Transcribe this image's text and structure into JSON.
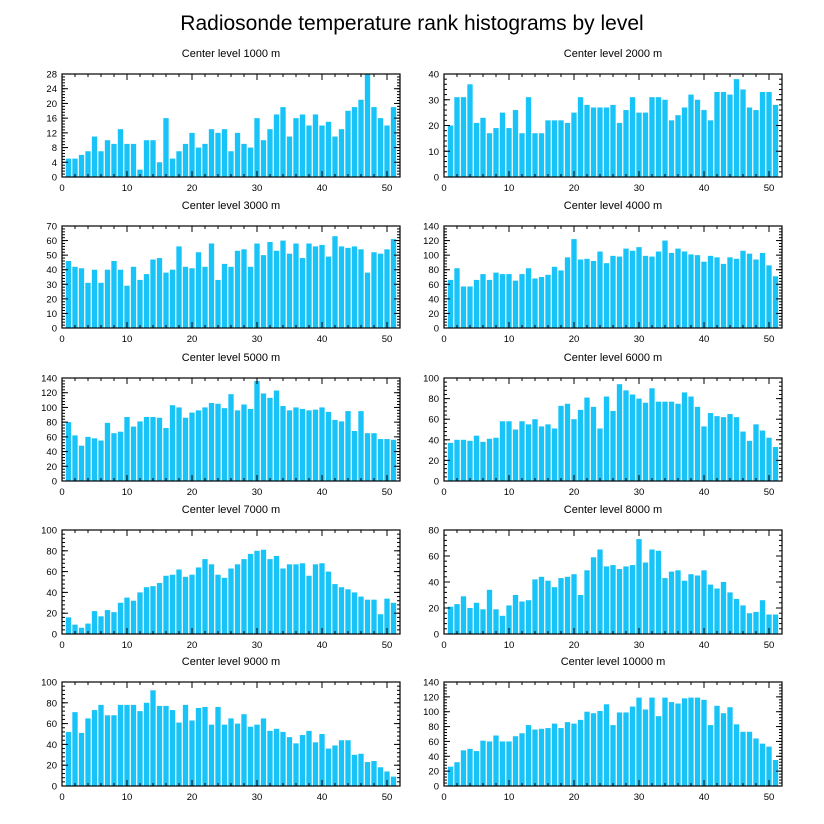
{
  "chart_data": {
    "type": "bar",
    "title": "Radiosonde temperature rank histograms by level",
    "bar_color": "#18c3f8",
    "panels": [
      {
        "title": "Center level 1000 m",
        "xlim": [
          0,
          52
        ],
        "ylim": [
          0,
          28
        ],
        "xticks": [
          0,
          10,
          20,
          30,
          40,
          50
        ],
        "yticks": [
          0,
          4,
          8,
          12,
          16,
          20,
          24,
          28
        ],
        "x": [
          1,
          2,
          3,
          4,
          5,
          6,
          7,
          8,
          9,
          10,
          11,
          12,
          13,
          14,
          15,
          16,
          17,
          18,
          19,
          20,
          21,
          22,
          23,
          24,
          25,
          26,
          27,
          28,
          29,
          30,
          31,
          32,
          33,
          34,
          35,
          36,
          37,
          38,
          39,
          40,
          41,
          42,
          43,
          44,
          45,
          46,
          47,
          48,
          49,
          50,
          51
        ],
        "values": [
          5,
          5,
          6,
          7,
          11,
          7,
          10,
          9,
          13,
          9,
          9,
          2,
          10,
          10,
          4,
          16,
          5,
          7,
          9,
          12,
          8,
          9,
          13,
          12,
          13,
          7,
          12,
          9,
          8,
          16,
          10,
          13,
          17,
          19,
          11,
          16,
          17,
          14,
          17,
          14,
          15,
          11,
          13,
          18,
          19,
          21,
          28,
          19,
          16,
          14,
          19
        ]
      },
      {
        "title": "Center level 2000 m",
        "xlim": [
          0,
          52
        ],
        "ylim": [
          0,
          40
        ],
        "xticks": [
          0,
          10,
          20,
          30,
          40,
          50
        ],
        "yticks": [
          0,
          10,
          20,
          30,
          40
        ],
        "x": [
          1,
          2,
          3,
          4,
          5,
          6,
          7,
          8,
          9,
          10,
          11,
          12,
          13,
          14,
          15,
          16,
          17,
          18,
          19,
          20,
          21,
          22,
          23,
          24,
          25,
          26,
          27,
          28,
          29,
          30,
          31,
          32,
          33,
          34,
          35,
          36,
          37,
          38,
          39,
          40,
          41,
          42,
          43,
          44,
          45,
          46,
          47,
          48,
          49,
          50,
          51
        ],
        "values": [
          20,
          31,
          31,
          36,
          21,
          23,
          17,
          19,
          25,
          19,
          26,
          17,
          31,
          17,
          17,
          22,
          22,
          22,
          21,
          25,
          31,
          28,
          27,
          27,
          27,
          28,
          21,
          26,
          31,
          25,
          25,
          31,
          31,
          30,
          22,
          24,
          27,
          32,
          30,
          26,
          22,
          33,
          33,
          32,
          38,
          34,
          27,
          26,
          33,
          33,
          28
        ]
      },
      {
        "title": "Center level 3000 m",
        "xlim": [
          0,
          52
        ],
        "ylim": [
          0,
          70
        ],
        "xticks": [
          0,
          10,
          20,
          30,
          40,
          50
        ],
        "yticks": [
          0,
          10,
          20,
          30,
          40,
          50,
          60,
          70
        ],
        "x": [
          1,
          2,
          3,
          4,
          5,
          6,
          7,
          8,
          9,
          10,
          11,
          12,
          13,
          14,
          15,
          16,
          17,
          18,
          19,
          20,
          21,
          22,
          23,
          24,
          25,
          26,
          27,
          28,
          29,
          30,
          31,
          32,
          33,
          34,
          35,
          36,
          37,
          38,
          39,
          40,
          41,
          42,
          43,
          44,
          45,
          46,
          47,
          48,
          49,
          50,
          51
        ],
        "values": [
          46,
          42,
          41,
          31,
          40,
          31,
          40,
          46,
          40,
          29,
          42,
          33,
          37,
          47,
          48,
          38,
          40,
          56,
          42,
          41,
          52,
          42,
          58,
          33,
          44,
          42,
          53,
          54,
          42,
          58,
          50,
          59,
          53,
          60,
          51,
          58,
          48,
          58,
          56,
          57,
          49,
          63,
          56,
          55,
          56,
          54,
          38,
          52,
          51,
          54,
          61
        ]
      },
      {
        "title": "Center level 4000 m",
        "xlim": [
          0,
          52
        ],
        "ylim": [
          0,
          140
        ],
        "xticks": [
          0,
          10,
          20,
          30,
          40,
          50
        ],
        "yticks": [
          0,
          20,
          40,
          60,
          80,
          100,
          120,
          140
        ],
        "x": [
          1,
          2,
          3,
          4,
          5,
          6,
          7,
          8,
          9,
          10,
          11,
          12,
          13,
          14,
          15,
          16,
          17,
          18,
          19,
          20,
          21,
          22,
          23,
          24,
          25,
          26,
          27,
          28,
          29,
          30,
          31,
          32,
          33,
          34,
          35,
          36,
          37,
          38,
          39,
          40,
          41,
          42,
          43,
          44,
          45,
          46,
          47,
          48,
          49,
          50,
          51
        ],
        "values": [
          66,
          82,
          57,
          57,
          66,
          74,
          66,
          76,
          74,
          74,
          65,
          74,
          82,
          68,
          70,
          73,
          84,
          79,
          97,
          122,
          94,
          95,
          92,
          105,
          89,
          99,
          98,
          109,
          106,
          111,
          99,
          98,
          105,
          120,
          103,
          109,
          105,
          101,
          100,
          91,
          99,
          97,
          88,
          97,
          95,
          106,
          102,
          94,
          103,
          86,
          71
        ]
      },
      {
        "title": "Center level 5000 m",
        "xlim": [
          0,
          52
        ],
        "ylim": [
          0,
          140
        ],
        "xticks": [
          0,
          10,
          20,
          30,
          40,
          50
        ],
        "yticks": [
          0,
          20,
          40,
          60,
          80,
          100,
          120,
          140
        ],
        "x": [
          1,
          2,
          3,
          4,
          5,
          6,
          7,
          8,
          9,
          10,
          11,
          12,
          13,
          14,
          15,
          16,
          17,
          18,
          19,
          20,
          21,
          22,
          23,
          24,
          25,
          26,
          27,
          28,
          29,
          30,
          31,
          32,
          33,
          34,
          35,
          36,
          37,
          38,
          39,
          40,
          41,
          42,
          43,
          44,
          45,
          46,
          47,
          48,
          49,
          50,
          51
        ],
        "values": [
          80,
          62,
          48,
          60,
          58,
          55,
          79,
          65,
          67,
          87,
          74,
          81,
          87,
          87,
          86,
          72,
          103,
          100,
          86,
          93,
          96,
          100,
          106,
          105,
          99,
          118,
          96,
          104,
          98,
          136,
          119,
          113,
          123,
          102,
          96,
          100,
          98,
          96,
          97,
          100,
          94,
          83,
          81,
          95,
          68,
          95,
          65,
          65,
          57,
          57,
          56
        ]
      },
      {
        "title": "Center level 6000 m",
        "xlim": [
          0,
          52
        ],
        "ylim": [
          0,
          100
        ],
        "xticks": [
          0,
          10,
          20,
          30,
          40,
          50
        ],
        "yticks": [
          0,
          20,
          40,
          60,
          80,
          100
        ],
        "x": [
          1,
          2,
          3,
          4,
          5,
          6,
          7,
          8,
          9,
          10,
          11,
          12,
          13,
          14,
          15,
          16,
          17,
          18,
          19,
          20,
          21,
          22,
          23,
          24,
          25,
          26,
          27,
          28,
          29,
          30,
          31,
          32,
          33,
          34,
          35,
          36,
          37,
          38,
          39,
          40,
          41,
          42,
          43,
          44,
          45,
          46,
          47,
          48,
          49,
          50,
          51
        ],
        "values": [
          37,
          40,
          40,
          39,
          44,
          38,
          41,
          42,
          58,
          58,
          50,
          58,
          55,
          60,
          53,
          55,
          51,
          73,
          75,
          60,
          69,
          81,
          72,
          51,
          82,
          68,
          94,
          88,
          84,
          80,
          76,
          90,
          77,
          77,
          77,
          75,
          86,
          82,
          72,
          53,
          66,
          63,
          62,
          65,
          62,
          48,
          39,
          55,
          49,
          42,
          33
        ]
      },
      {
        "title": "Center level 7000 m",
        "xlim": [
          0,
          52
        ],
        "ylim": [
          0,
          100
        ],
        "xticks": [
          0,
          10,
          20,
          30,
          40,
          50
        ],
        "yticks": [
          0,
          20,
          40,
          60,
          80,
          100
        ],
        "x": [
          1,
          2,
          3,
          4,
          5,
          6,
          7,
          8,
          9,
          10,
          11,
          12,
          13,
          14,
          15,
          16,
          17,
          18,
          19,
          20,
          21,
          22,
          23,
          24,
          25,
          26,
          27,
          28,
          29,
          30,
          31,
          32,
          33,
          34,
          35,
          36,
          37,
          38,
          39,
          40,
          41,
          42,
          43,
          44,
          45,
          46,
          47,
          48,
          49,
          50,
          51
        ],
        "values": [
          16,
          9,
          6,
          10,
          22,
          17,
          23,
          21,
          30,
          35,
          32,
          40,
          45,
          46,
          49,
          56,
          57,
          62,
          55,
          57,
          64,
          72,
          67,
          57,
          54,
          63,
          67,
          72,
          77,
          80,
          81,
          72,
          75,
          63,
          67,
          67,
          68,
          56,
          67,
          68,
          60,
          48,
          45,
          43,
          40,
          36,
          33,
          33,
          19,
          34,
          30
        ]
      },
      {
        "title": "Center level 8000 m",
        "xlim": [
          0,
          52
        ],
        "ylim": [
          0,
          80
        ],
        "xticks": [
          0,
          10,
          20,
          30,
          40,
          50
        ],
        "yticks": [
          0,
          20,
          40,
          60,
          80
        ],
        "x": [
          1,
          2,
          3,
          4,
          5,
          6,
          7,
          8,
          9,
          10,
          11,
          12,
          13,
          14,
          15,
          16,
          17,
          18,
          19,
          20,
          21,
          22,
          23,
          24,
          25,
          26,
          27,
          28,
          29,
          30,
          31,
          32,
          33,
          34,
          35,
          36,
          37,
          38,
          39,
          40,
          41,
          42,
          43,
          44,
          45,
          46,
          47,
          48,
          49,
          50,
          51
        ],
        "values": [
          21,
          23,
          29,
          20,
          24,
          19,
          34,
          19,
          14,
          22,
          30,
          25,
          26,
          42,
          44,
          41,
          36,
          43,
          44,
          46,
          30,
          49,
          59,
          65,
          52,
          53,
          50,
          52,
          53,
          73,
          55,
          65,
          64,
          43,
          48,
          49,
          41,
          46,
          45,
          49,
          38,
          35,
          40,
          32,
          27,
          22,
          16,
          17,
          26,
          15,
          15
        ]
      },
      {
        "title": "Center level 9000 m",
        "xlim": [
          0,
          52
        ],
        "ylim": [
          0,
          100
        ],
        "xticks": [
          0,
          10,
          20,
          30,
          40,
          50
        ],
        "yticks": [
          0,
          20,
          40,
          60,
          80,
          100
        ],
        "x": [
          1,
          2,
          3,
          4,
          5,
          6,
          7,
          8,
          9,
          10,
          11,
          12,
          13,
          14,
          15,
          16,
          17,
          18,
          19,
          20,
          21,
          22,
          23,
          24,
          25,
          26,
          27,
          28,
          29,
          30,
          31,
          32,
          33,
          34,
          35,
          36,
          37,
          38,
          39,
          40,
          41,
          42,
          43,
          44,
          45,
          46,
          47,
          48,
          49,
          50,
          51
        ],
        "values": [
          52,
          71,
          51,
          65,
          73,
          78,
          68,
          68,
          78,
          78,
          78,
          72,
          80,
          92,
          77,
          77,
          73,
          61,
          78,
          63,
          75,
          76,
          59,
          76,
          59,
          65,
          60,
          69,
          57,
          59,
          65,
          53,
          55,
          52,
          47,
          41,
          49,
          53,
          42,
          50,
          36,
          39,
          44,
          44,
          30,
          31,
          23,
          24,
          18,
          14,
          9
        ]
      },
      {
        "title": "Center level 10000 m",
        "xlim": [
          0,
          52
        ],
        "ylim": [
          0,
          140
        ],
        "xticks": [
          0,
          10,
          20,
          30,
          40,
          50
        ],
        "yticks": [
          0,
          20,
          40,
          60,
          80,
          100,
          120,
          140
        ],
        "x": [
          1,
          2,
          3,
          4,
          5,
          6,
          7,
          8,
          9,
          10,
          11,
          12,
          13,
          14,
          15,
          16,
          17,
          18,
          19,
          20,
          21,
          22,
          23,
          24,
          25,
          26,
          27,
          28,
          29,
          30,
          31,
          32,
          33,
          34,
          35,
          36,
          37,
          38,
          39,
          40,
          41,
          42,
          43,
          44,
          45,
          46,
          47,
          48,
          49,
          50,
          51
        ],
        "values": [
          26,
          32,
          48,
          50,
          47,
          61,
          60,
          68,
          60,
          60,
          67,
          71,
          82,
          76,
          77,
          78,
          84,
          78,
          86,
          84,
          89,
          100,
          98,
          101,
          110,
          82,
          99,
          99,
          107,
          119,
          103,
          119,
          94,
          119,
          113,
          111,
          118,
          119,
          119,
          116,
          82,
          108,
          98,
          106,
          83,
          73,
          73,
          64,
          57,
          53,
          35
        ]
      }
    ]
  }
}
